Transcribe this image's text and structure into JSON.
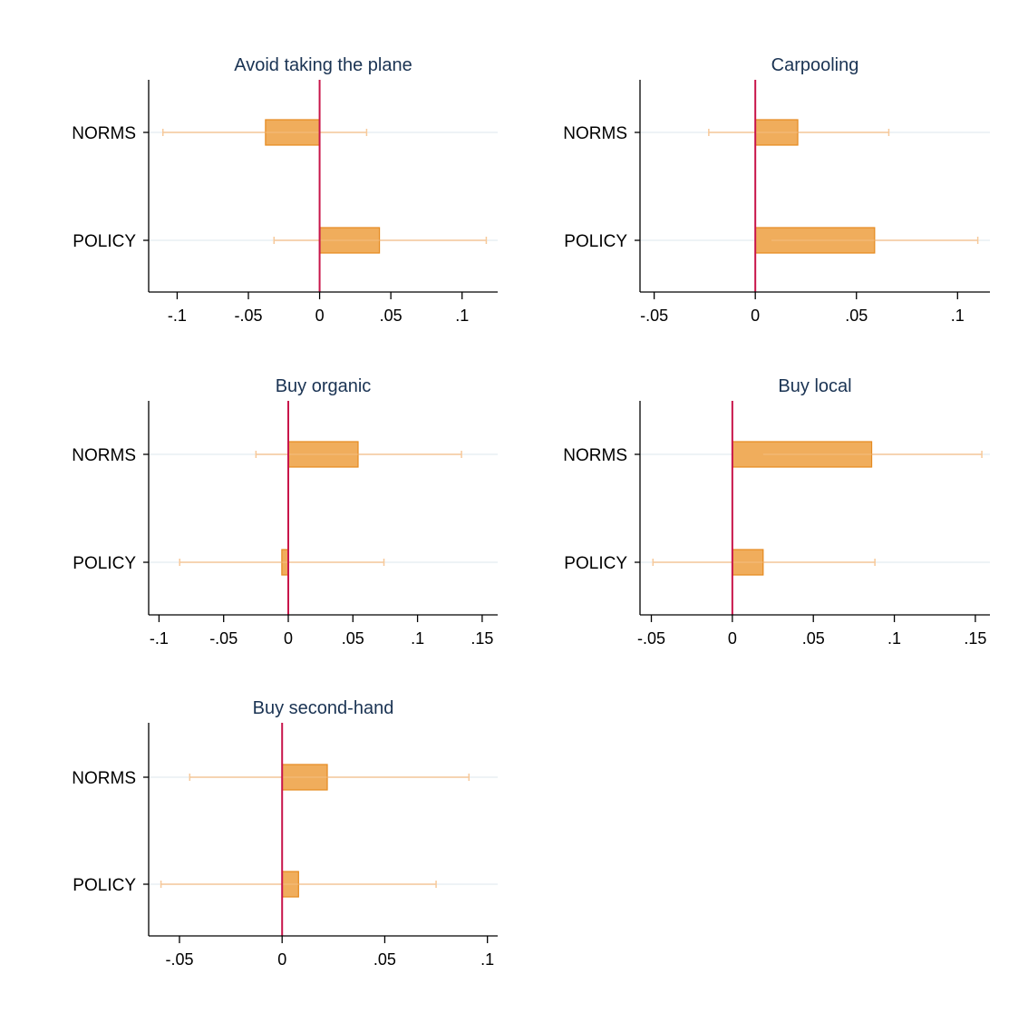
{
  "colors": {
    "bar_fill": "#f0ad5c",
    "bar_stroke": "#e58a1f",
    "ci": "#f7c99a",
    "zero_line": "#c8154a",
    "gridline": "#e9eff3",
    "title": "#1a3353",
    "axis": "#000000"
  },
  "chart_data": [
    {
      "type": "bar",
      "orientation": "horizontal",
      "title": "Avoid taking the plane",
      "categories": [
        "NORMS",
        "POLICY"
      ],
      "values": [
        -0.038,
        0.042
      ],
      "ci": [
        [
          -0.11,
          0.033
        ],
        [
          -0.032,
          0.117
        ]
      ],
      "xlim": [
        -0.12,
        0.125
      ],
      "xticks": [
        -0.1,
        -0.05,
        0,
        0.05,
        0.1
      ],
      "xtick_labels": [
        "-.1",
        "-.05",
        "0",
        ".05",
        ".1"
      ],
      "grid": "horizontal"
    },
    {
      "type": "bar",
      "orientation": "horizontal",
      "title": "Carpooling",
      "categories": [
        "NORMS",
        "POLICY"
      ],
      "values": [
        0.021,
        0.059
      ],
      "ci": [
        [
          -0.023,
          0.066
        ],
        [
          0.008,
          0.11
        ]
      ],
      "xlim": [
        -0.057,
        0.116
      ],
      "xticks": [
        -0.05,
        0,
        0.05,
        0.1
      ],
      "xtick_labels": [
        "-.05",
        "0",
        ".05",
        ".1"
      ],
      "grid": "horizontal"
    },
    {
      "type": "bar",
      "orientation": "horizontal",
      "title": "Buy organic",
      "categories": [
        "NORMS",
        "POLICY"
      ],
      "values": [
        0.054,
        -0.005
      ],
      "ci": [
        [
          -0.025,
          0.134
        ],
        [
          -0.084,
          0.074
        ]
      ],
      "xlim": [
        -0.108,
        0.162
      ],
      "xticks": [
        -0.1,
        -0.05,
        0,
        0.05,
        0.1,
        0.15
      ],
      "xtick_labels": [
        "-.1",
        "-.05",
        "0",
        ".05",
        ".1",
        ".15"
      ],
      "grid": "horizontal"
    },
    {
      "type": "bar",
      "orientation": "horizontal",
      "title": "Buy local",
      "categories": [
        "NORMS",
        "POLICY"
      ],
      "values": [
        0.086,
        0.019
      ],
      "ci": [
        [
          0.019,
          0.154
        ],
        [
          -0.049,
          0.088
        ]
      ],
      "xlim": [
        -0.057,
        0.159
      ],
      "xticks": [
        -0.05,
        0,
        0.05,
        0.1,
        0.15
      ],
      "xtick_labels": [
        "-.05",
        "0",
        ".05",
        ".1",
        ".15"
      ],
      "grid": "horizontal"
    },
    {
      "type": "bar",
      "orientation": "horizontal",
      "title": "Buy second-hand",
      "categories": [
        "NORMS",
        "POLICY"
      ],
      "values": [
        0.022,
        0.008
      ],
      "ci": [
        [
          -0.045,
          0.091
        ],
        [
          -0.059,
          0.075
        ]
      ],
      "xlim": [
        -0.065,
        0.105
      ],
      "xticks": [
        -0.05,
        0,
        0.05,
        0.1
      ],
      "xtick_labels": [
        "-.05",
        "0",
        ".05",
        ".1"
      ],
      "grid": "horizontal"
    }
  ]
}
